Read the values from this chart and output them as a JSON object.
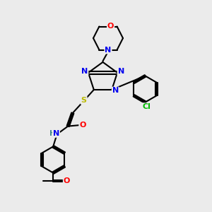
{
  "bg_color": "#ebebeb",
  "bond_color": "#000000",
  "atom_colors": {
    "N": "#0000ee",
    "O": "#ff0000",
    "S": "#bbbb00",
    "Cl": "#00bb00",
    "H": "#448888",
    "C": "#000000"
  }
}
